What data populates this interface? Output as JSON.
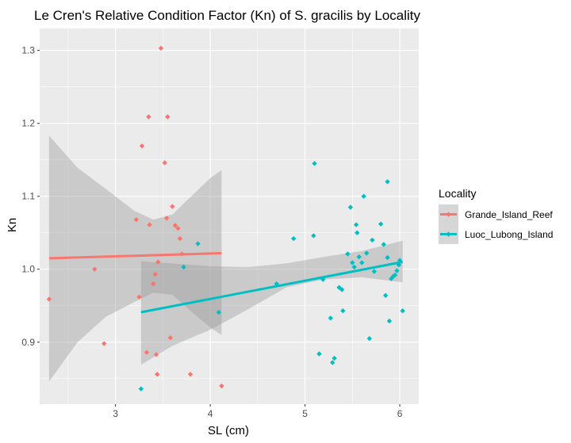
{
  "chart_data": {
    "type": "scatter",
    "title": "Le Cren's Relative Condition Factor (Kn) of S. gracilis by Locality",
    "xlabel": "SL (cm)",
    "ylabel": "Kn",
    "xlim": [
      2.2,
      6.2
    ],
    "ylim": [
      0.815,
      1.33
    ],
    "x_ticks": [
      3,
      4,
      5,
      6
    ],
    "x_tick_labels": [
      "3",
      "4",
      "5",
      "6"
    ],
    "y_ticks": [
      0.9,
      1.0,
      1.1,
      1.2,
      1.3
    ],
    "y_tick_labels": [
      "0.9",
      "1.0",
      "1.1",
      "1.2",
      "1.3"
    ],
    "grid": true,
    "legend": {
      "title": "Locality",
      "position": "right"
    },
    "panel_color": "#ebebeb",
    "band_color": "#999999",
    "series": [
      {
        "name": "Grande_Island_Reef",
        "color": "#f8766d",
        "points": [
          [
            2.3,
            0.959
          ],
          [
            2.78,
            1.0
          ],
          [
            2.88,
            0.898
          ],
          [
            3.22,
            1.068
          ],
          [
            3.25,
            0.962
          ],
          [
            3.28,
            1.169
          ],
          [
            3.33,
            0.886
          ],
          [
            3.35,
            1.209
          ],
          [
            3.36,
            1.061
          ],
          [
            3.4,
            0.98
          ],
          [
            3.42,
            0.993
          ],
          [
            3.43,
            0.883
          ],
          [
            3.44,
            0.856
          ],
          [
            3.45,
            1.01
          ],
          [
            3.48,
            1.303
          ],
          [
            3.52,
            1.146
          ],
          [
            3.54,
            1.07
          ],
          [
            3.55,
            1.209
          ],
          [
            3.58,
            0.906
          ],
          [
            3.6,
            1.086
          ],
          [
            3.63,
            1.06
          ],
          [
            3.66,
            1.056
          ],
          [
            3.68,
            1.042
          ],
          [
            3.7,
            1.021
          ],
          [
            3.79,
            0.856
          ],
          [
            4.12,
            0.84
          ]
        ],
        "fit": {
          "x": [
            2.3,
            4.12
          ],
          "y": [
            1.015,
            1.022
          ]
        },
        "band": {
          "x": [
            2.3,
            2.6,
            2.9,
            3.2,
            3.4,
            3.6,
            3.8,
            4.0,
            4.12
          ],
          "upper": [
            1.183,
            1.139,
            1.11,
            1.08,
            1.068,
            1.075,
            1.1,
            1.125,
            1.136
          ],
          "lower": [
            0.846,
            0.9,
            0.935,
            0.955,
            0.968,
            0.965,
            0.942,
            0.92,
            0.91
          ]
        }
      },
      {
        "name": "Luoc_Lubong_Island",
        "color": "#00bfc4",
        "points": [
          [
            3.27,
            0.836
          ],
          [
            3.72,
            1.003
          ],
          [
            3.87,
            1.035
          ],
          [
            4.09,
            0.941
          ],
          [
            4.7,
            0.98
          ],
          [
            4.88,
            1.042
          ],
          [
            5.09,
            1.046
          ],
          [
            5.1,
            1.145
          ],
          [
            5.15,
            0.884
          ],
          [
            5.19,
            0.986
          ],
          [
            5.27,
            0.933
          ],
          [
            5.29,
            0.872
          ],
          [
            5.31,
            0.878
          ],
          [
            5.36,
            0.975
          ],
          [
            5.39,
            0.972
          ],
          [
            5.4,
            0.943
          ],
          [
            5.45,
            1.021
          ],
          [
            5.48,
            1.085
          ],
          [
            5.5,
            1.009
          ],
          [
            5.52,
            1.003
          ],
          [
            5.54,
            1.061
          ],
          [
            5.55,
            1.05
          ],
          [
            5.57,
            1.017
          ],
          [
            5.6,
            1.009
          ],
          [
            5.62,
            1.1
          ],
          [
            5.65,
            1.022
          ],
          [
            5.68,
            0.905
          ],
          [
            5.71,
            1.04
          ],
          [
            5.73,
            0.997
          ],
          [
            5.8,
            1.062
          ],
          [
            5.83,
            1.034
          ],
          [
            5.85,
            0.964
          ],
          [
            5.87,
            1.12
          ],
          [
            5.87,
            1.016
          ],
          [
            5.89,
            0.929
          ],
          [
            5.91,
            0.987
          ],
          [
            5.93,
            0.99
          ],
          [
            5.95,
            0.992
          ],
          [
            5.97,
            0.998
          ],
          [
            5.99,
            1.006
          ],
          [
            6.0,
            1.012
          ],
          [
            6.03,
            0.943
          ]
        ],
        "fit": {
          "x": [
            3.27,
            6.03
          ],
          "y": [
            0.941,
            1.01
          ]
        },
        "band": {
          "x": [
            3.27,
            3.6,
            4.0,
            4.4,
            4.8,
            5.2,
            5.6,
            6.03
          ],
          "upper": [
            1.011,
            1.008,
            1.004,
            1.003,
            1.008,
            1.017,
            1.025,
            1.039
          ],
          "lower": [
            0.869,
            0.895,
            0.917,
            0.945,
            0.975,
            0.986,
            0.989,
            0.982
          ]
        }
      }
    ]
  }
}
